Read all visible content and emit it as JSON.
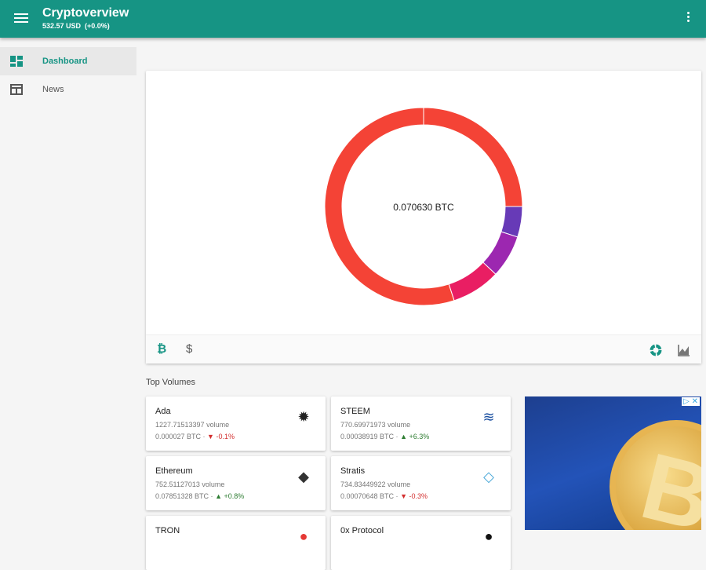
{
  "app": {
    "title": "Cryptoverview",
    "subtitle": "532.57 USD  (+0.0%)"
  },
  "sidebar": {
    "items": [
      {
        "label": "Dashboard",
        "icon": "dashboard-icon",
        "active": true
      },
      {
        "label": "News",
        "icon": "news-icon",
        "active": false
      }
    ]
  },
  "portfolio": {
    "total": "0.070630 BTC",
    "chart_data": {
      "type": "pie",
      "segments": [
        {
          "value": 25,
          "color": "#f44336"
        },
        {
          "value": 5,
          "color": "#673ab7"
        },
        {
          "value": 7,
          "color": "#9c27b0"
        },
        {
          "value": 8,
          "color": "#e91e63"
        },
        {
          "value": 55,
          "color": "#f44336"
        }
      ]
    },
    "footer": {
      "btc_icon": "₿",
      "usd_icon": "$"
    }
  },
  "section_title": "Top Volumes",
  "coins": [
    {
      "name": "Ada",
      "volume": "1227.71513397 volume",
      "price": "0.000027 BTC · ",
      "change": "▼ -0.1%",
      "dir": "down",
      "logo": "✹"
    },
    {
      "name": "STEEM",
      "volume": "770.69971973 volume",
      "price": "0.00038919 BTC · ",
      "change": "▲ +6.3%",
      "dir": "up",
      "logo": "≋"
    },
    {
      "name": "Ethereum",
      "volume": "752.51127013 volume",
      "price": "0.07851328 BTC · ",
      "change": "▲ +0.8%",
      "dir": "up",
      "logo": "◆"
    },
    {
      "name": "Stratis",
      "volume": "734.83449922 volume",
      "price": "0.00070648 BTC · ",
      "change": "▼ -0.3%",
      "dir": "down",
      "logo": "◇"
    },
    {
      "name": "TRON",
      "volume": "",
      "price": "",
      "change": "",
      "dir": "up",
      "logo": "●"
    },
    {
      "name": "0x Protocol",
      "volume": "",
      "price": "",
      "change": "",
      "dir": "up",
      "logo": "●"
    }
  ],
  "ad": {
    "choices": "▷ ✕",
    "btc_symbol": "B"
  },
  "colors": {
    "primary": "#169484",
    "up": "#2e7d32",
    "down": "#d32f2f"
  }
}
